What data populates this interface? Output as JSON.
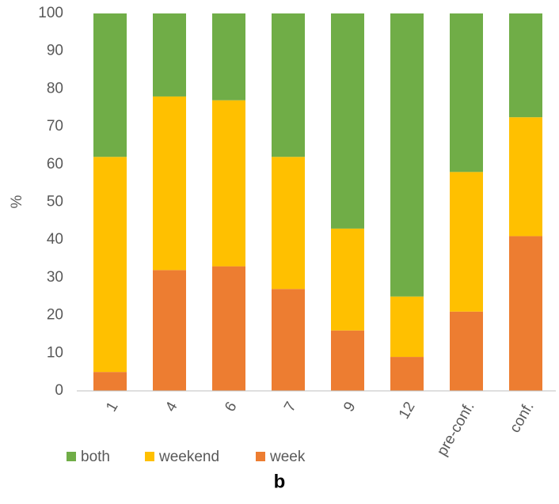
{
  "chart_data": {
    "type": "stacked_bar",
    "ylabel": "%",
    "caption": "b",
    "categories": [
      "1",
      "4",
      "6",
      "7",
      "9",
      "12",
      "pre-conf.",
      "conf."
    ],
    "series": [
      {
        "name": "both",
        "color": "#70ad47",
        "values": [
          38,
          22,
          23,
          38,
          57,
          75,
          42,
          27.5
        ]
      },
      {
        "name": "weekend",
        "color": "#ffc000",
        "values": [
          57,
          46,
          44,
          35,
          27,
          16,
          37,
          31.5
        ]
      },
      {
        "name": "week",
        "color": "#ed7d31",
        "values": [
          5,
          32,
          33,
          27,
          16,
          9,
          21,
          41
        ]
      }
    ],
    "stack_order": "bottom-up from last series",
    "ylim": [
      0,
      100
    ],
    "yticks": [
      0,
      10,
      20,
      30,
      40,
      50,
      60,
      70,
      80,
      90,
      100
    ],
    "grid": false
  }
}
